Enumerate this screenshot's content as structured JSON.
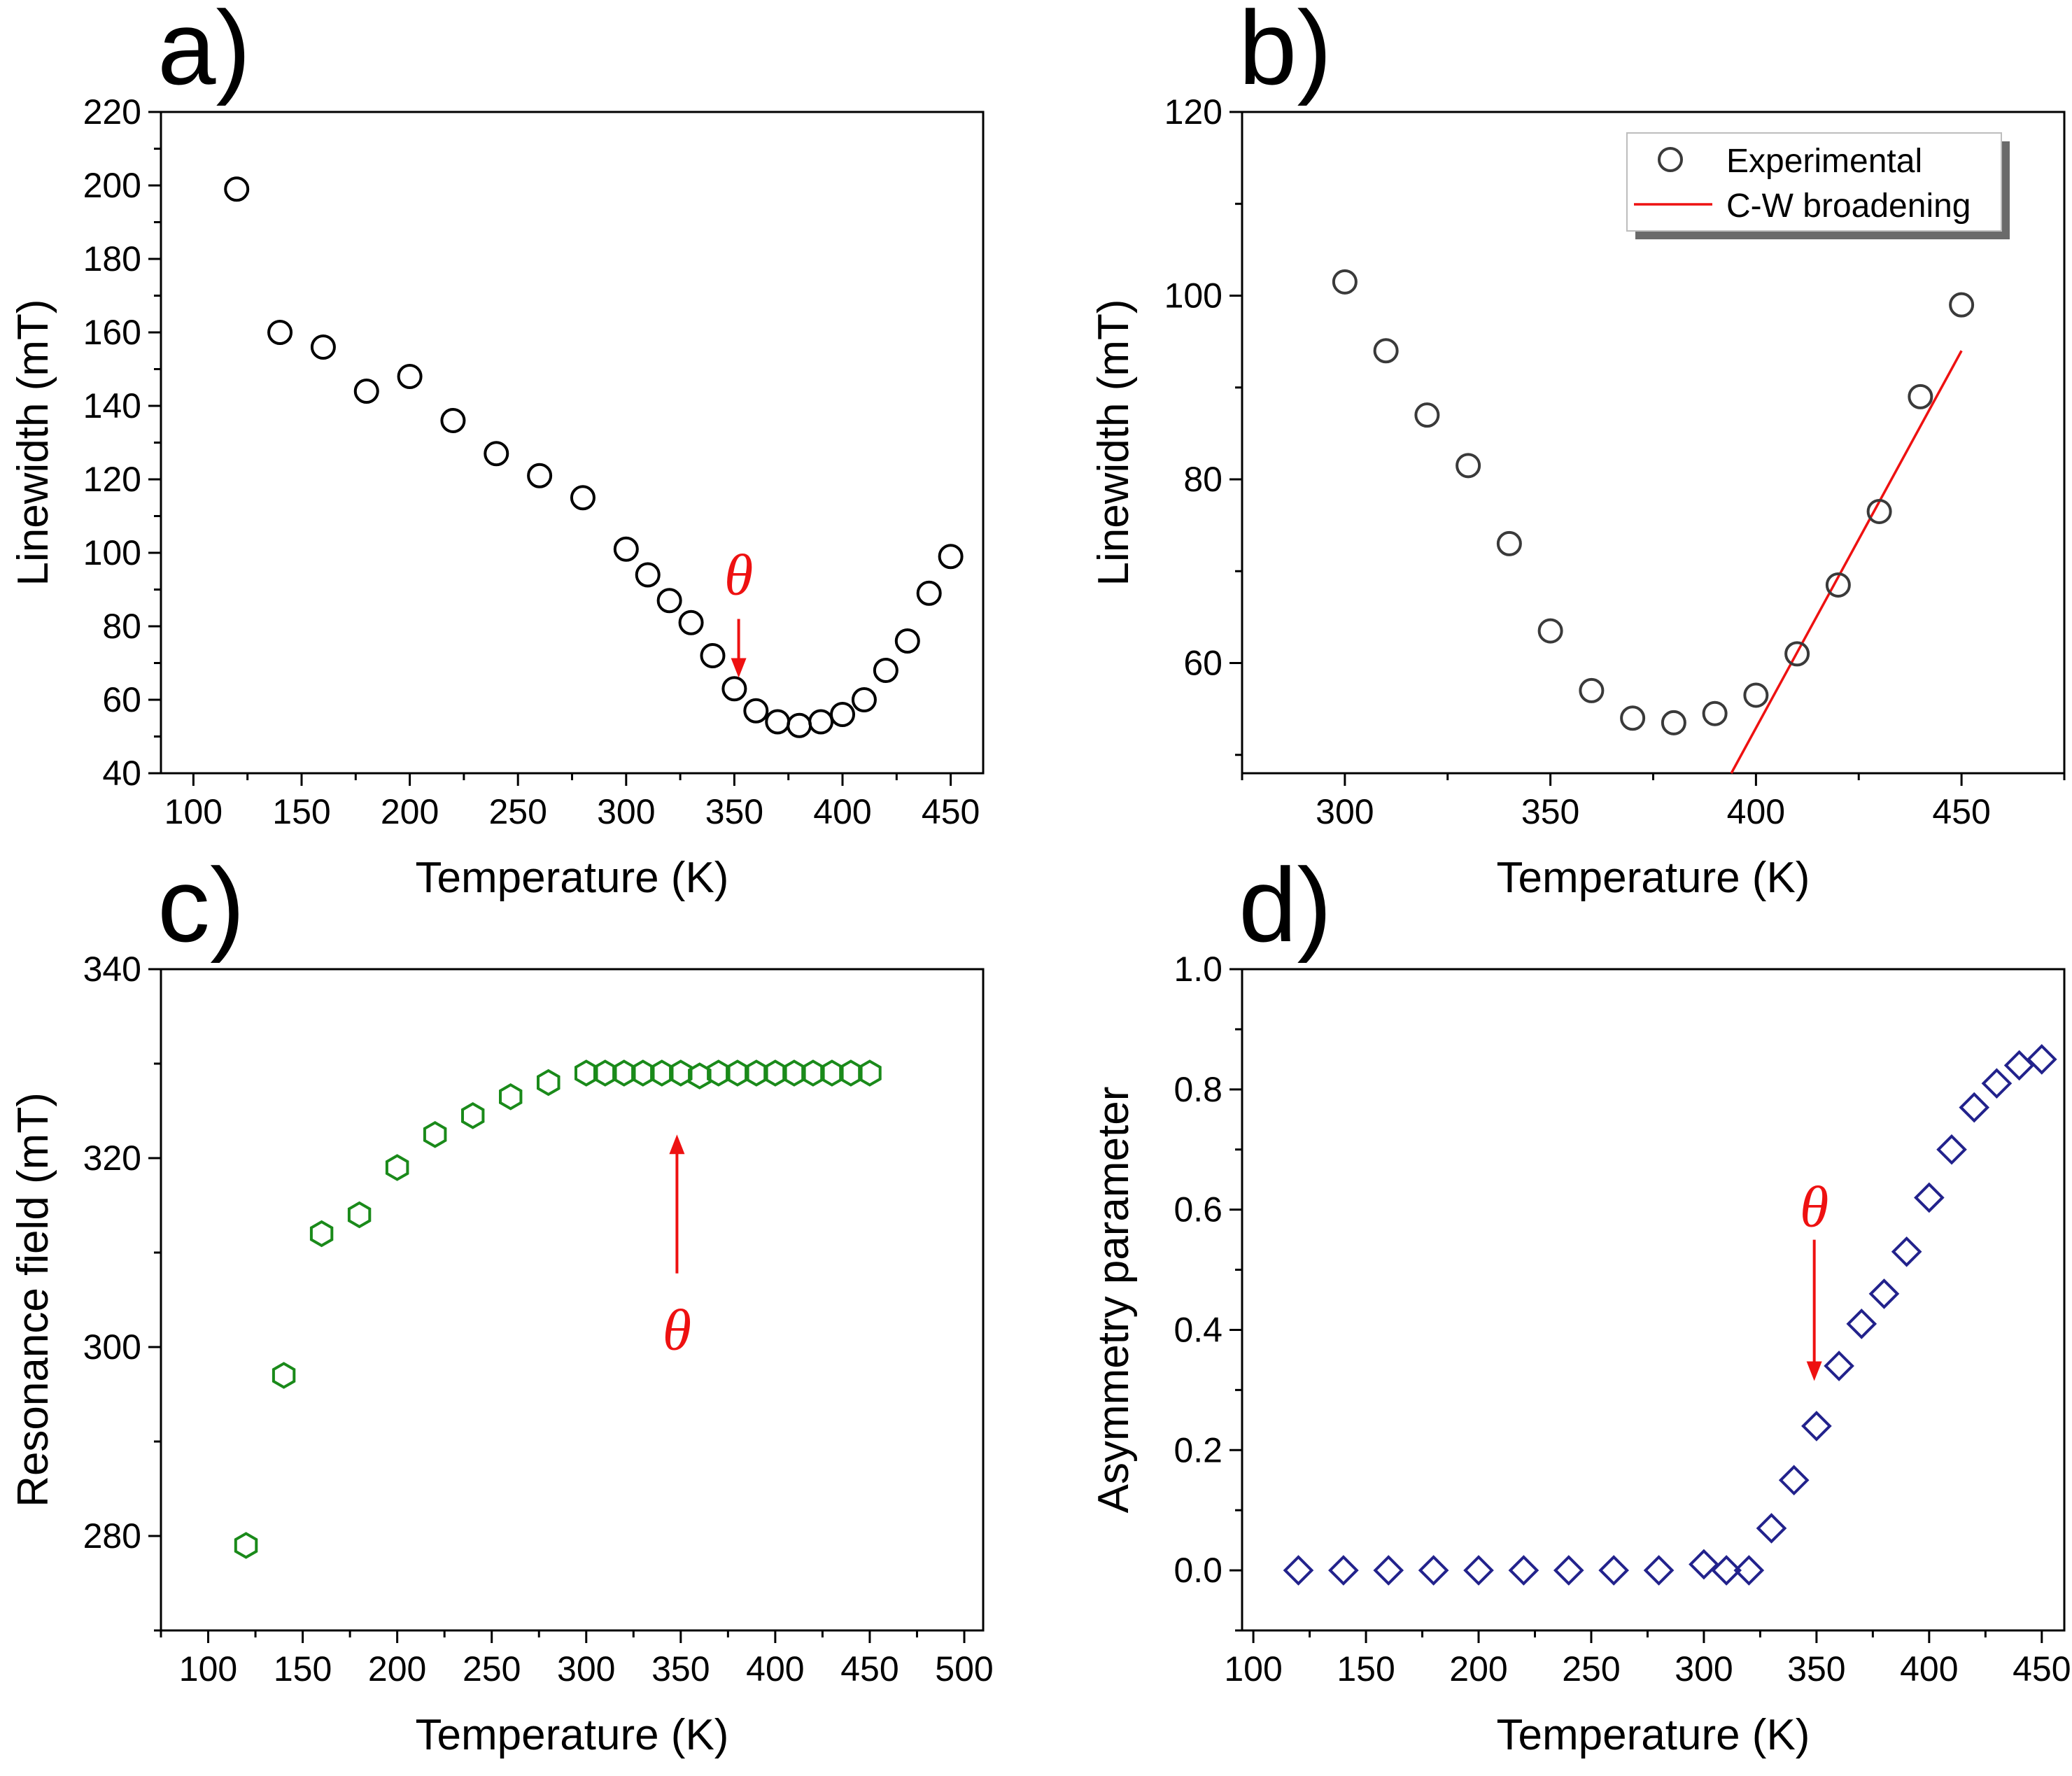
{
  "colors": {
    "black": "#000000",
    "gray": "#3a3a3a",
    "red": "#ee1111",
    "green": "#1a8a1a",
    "navy": "#22228c"
  },
  "chart_data": [
    {
      "id": "a",
      "panel_label": "a)",
      "type": "scatter",
      "marker": "circle",
      "color_key": "black",
      "xlabel": "Temperature (K)",
      "ylabel": "Linewidth (mT)",
      "xlim": [
        85,
        465
      ],
      "ylim": [
        40,
        220
      ],
      "xticks": [
        100,
        150,
        200,
        250,
        300,
        350,
        400,
        450
      ],
      "xtick_labels": [
        "100",
        "150",
        "200",
        "250",
        "300",
        "350",
        "400",
        "450"
      ],
      "yticks": [
        40,
        60,
        80,
        100,
        120,
        140,
        160,
        180,
        200,
        220
      ],
      "ytick_labels": [
        "40",
        "60",
        "80",
        "100",
        "120",
        "140",
        "160",
        "180",
        "200",
        "220"
      ],
      "series": [
        {
          "name": "Linewidth",
          "x": [
            120,
            140,
            160,
            180,
            200,
            220,
            240,
            260,
            280,
            300,
            310,
            320,
            330,
            340,
            350,
            360,
            370,
            380,
            390,
            400,
            410,
            420,
            430,
            440,
            450
          ],
          "y": [
            199,
            160,
            156,
            144,
            148,
            136,
            127,
            121,
            115,
            101,
            94,
            87,
            81,
            72,
            63,
            57,
            54,
            53,
            54,
            56,
            60,
            68,
            76,
            89,
            99
          ]
        }
      ],
      "annotations": [
        {
          "text": "θ",
          "x": 352,
          "y": 94,
          "arrow": "down",
          "arrow_from": [
            352,
            82
          ],
          "arrow_to": [
            352,
            66
          ]
        }
      ]
    },
    {
      "id": "b",
      "panel_label": "b)",
      "type": "scatter",
      "marker": "circle",
      "color_key": "gray",
      "xlabel": "Temperature (K)",
      "ylabel": "Linewidth (mT)",
      "xlim": [
        275,
        475
      ],
      "ylim": [
        48,
        120
      ],
      "xticks": [
        300,
        350,
        400,
        450
      ],
      "xtick_labels": [
        "300",
        "350",
        "400",
        "450"
      ],
      "yticks": [
        60,
        80,
        100,
        120
      ],
      "ytick_labels": [
        "60",
        "80",
        "100",
        "120"
      ],
      "series": [
        {
          "name": "Experimental",
          "x": [
            300,
            310,
            320,
            330,
            340,
            350,
            360,
            370,
            380,
            390,
            400,
            410,
            420,
            430,
            440,
            450
          ],
          "y": [
            101.5,
            94,
            87,
            81.5,
            73,
            63.5,
            57,
            54,
            53.5,
            54.5,
            56.5,
            61,
            68.5,
            76.5,
            89,
            99
          ]
        }
      ],
      "fit_line": {
        "name": "C-W broadening",
        "color_key": "red",
        "x": [
          394,
          450
        ],
        "y": [
          48,
          94
        ]
      },
      "legend": {
        "position": "top-right",
        "entries": [
          "Experimental",
          "C-W broadening"
        ]
      }
    },
    {
      "id": "c",
      "panel_label": "c)",
      "type": "scatter",
      "marker": "hexagon",
      "color_key": "green",
      "xlabel": "Temperature (K)",
      "ylabel": "Resonance field (mT)",
      "xlim": [
        75,
        510
      ],
      "ylim": [
        270,
        340
      ],
      "xticks": [
        100,
        150,
        200,
        250,
        300,
        350,
        400,
        450,
        500
      ],
      "xtick_labels": [
        "100",
        "150",
        "200",
        "250",
        "300",
        "350",
        "400",
        "450",
        "500"
      ],
      "yticks": [
        280,
        300,
        320,
        340
      ],
      "ytick_labels": [
        "280",
        "300",
        "320",
        "340"
      ],
      "series": [
        {
          "name": "Resonance field",
          "x": [
            120,
            140,
            160,
            180,
            200,
            220,
            240,
            260,
            280,
            300,
            310,
            320,
            330,
            340,
            350,
            360,
            370,
            380,
            390,
            400,
            410,
            420,
            430,
            440,
            450
          ],
          "y": [
            279,
            297,
            312,
            314,
            319,
            322.5,
            324.5,
            326.5,
            328,
            329,
            329,
            329,
            329,
            329,
            329,
            328.7,
            329,
            329,
            329,
            329,
            329,
            329,
            329,
            329,
            329
          ]
        }
      ],
      "annotations": [
        {
          "text": "θ",
          "x": 348,
          "y": 301.8,
          "arrow": "up",
          "arrow_from": [
            348,
            307.8
          ],
          "arrow_to": [
            348,
            322.5
          ]
        }
      ]
    },
    {
      "id": "d",
      "panel_label": "d)",
      "type": "scatter",
      "marker": "diamond",
      "color_key": "navy",
      "xlabel": "Temperature (K)",
      "ylabel": "Asymmetry parameter",
      "xlim": [
        95,
        460
      ],
      "ylim": [
        -0.1,
        1.0
      ],
      "xticks": [
        100,
        150,
        200,
        250,
        300,
        350,
        400,
        450
      ],
      "xtick_labels": [
        "100",
        "150",
        "200",
        "250",
        "300",
        "350",
        "400",
        "450"
      ],
      "yticks": [
        0.0,
        0.2,
        0.4,
        0.6,
        0.8,
        1.0
      ],
      "ytick_labels": [
        "0.0",
        "0.2",
        "0.4",
        "0.6",
        "0.8",
        "1.0"
      ],
      "series": [
        {
          "name": "Asymmetry parameter",
          "x": [
            120,
            140,
            160,
            180,
            200,
            220,
            240,
            260,
            280,
            300,
            310,
            320,
            330,
            340,
            350,
            360,
            370,
            380,
            390,
            400,
            410,
            420,
            430,
            440,
            450
          ],
          "y": [
            0,
            0,
            0,
            0,
            0,
            0,
            0,
            0,
            0,
            0.01,
            0,
            0,
            0.07,
            0.15,
            0.24,
            0.34,
            0.41,
            0.46,
            0.53,
            0.62,
            0.7,
            0.77,
            0.81,
            0.84,
            0.85
          ]
        }
      ],
      "annotations": [
        {
          "text": "θ",
          "x": 349,
          "y": 0.605,
          "arrow": "down",
          "arrow_from": [
            349,
            0.55
          ],
          "arrow_to": [
            349,
            0.315
          ]
        }
      ]
    }
  ]
}
